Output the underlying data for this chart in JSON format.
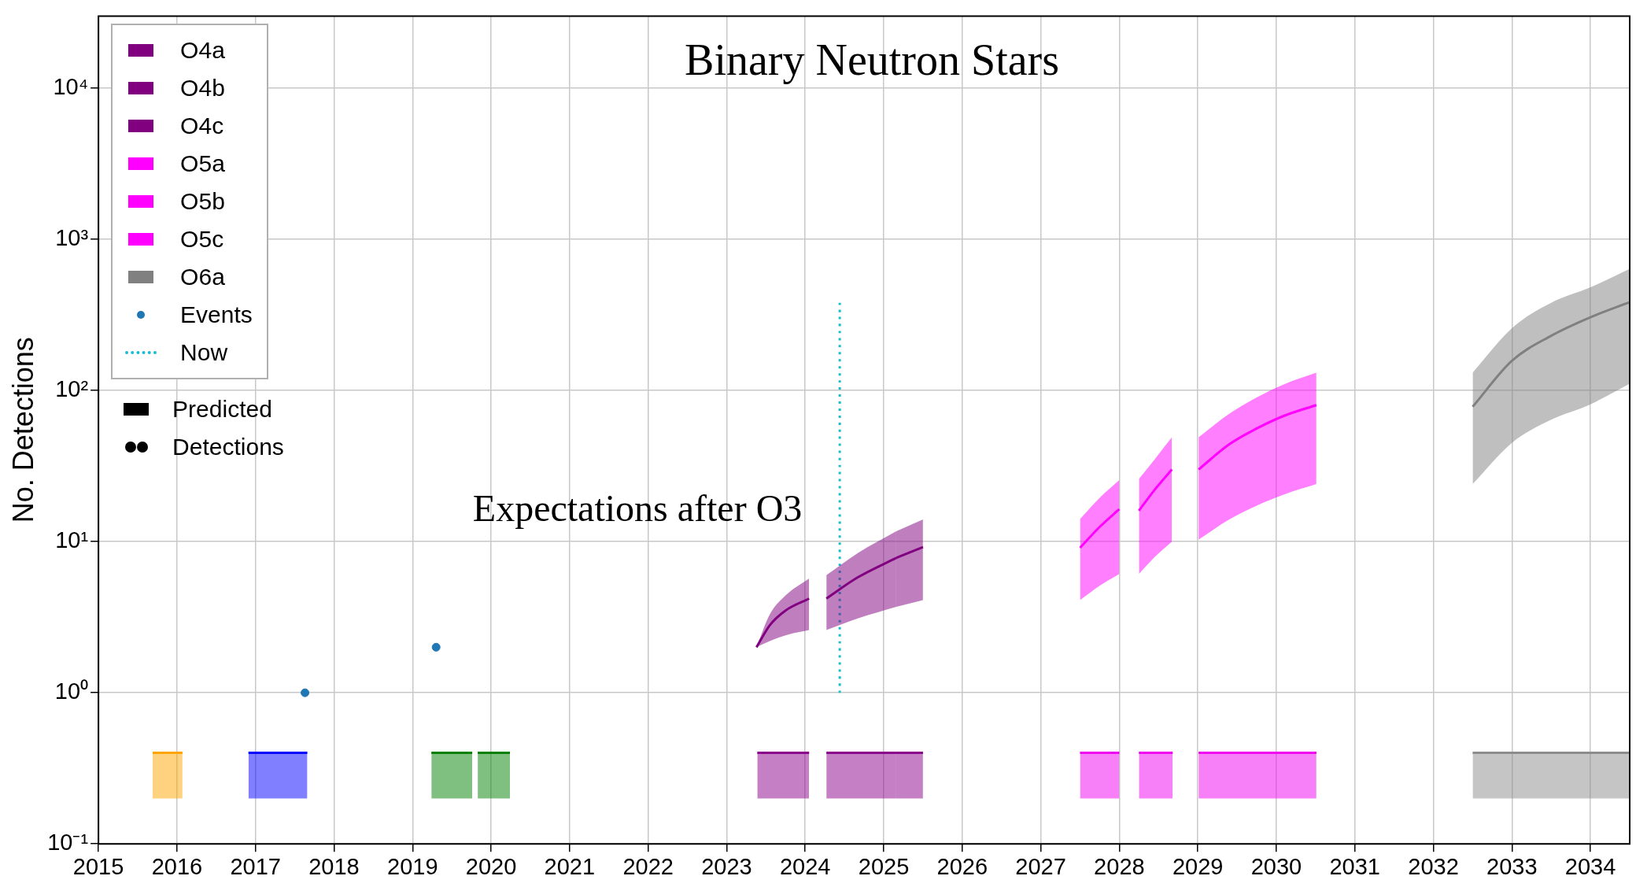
{
  "chart_data": {
    "type": "line",
    "title": "Binary Neutron Stars",
    "ylabel": "No. Detections",
    "log": "y",
    "grid": true,
    "legend": "top left",
    "xlim": [
      2015,
      2034.5
    ],
    "xticks": [
      2015,
      2016,
      2017,
      2018,
      2019,
      2020,
      2021,
      2022,
      2023,
      2024,
      2025,
      2026,
      2027,
      2028,
      2029,
      2030,
      2031,
      2032,
      2033,
      2034
    ],
    "ylim": [
      0.1,
      30000
    ],
    "yticks": [
      {
        "value": 0.1,
        "label": "10⁻¹"
      },
      {
        "value": 1,
        "label": "10⁰"
      },
      {
        "value": 10,
        "label": "10¹"
      },
      {
        "value": 100,
        "label": "10²"
      },
      {
        "value": 1000,
        "label": "10³"
      },
      {
        "value": 10000,
        "label": "10⁴"
      }
    ],
    "annotations": [
      "Expectations after O3",
      "Predicted",
      "Detections"
    ],
    "series": [
      {
        "name": "O4a",
        "color": "#800080",
        "x": [
          2023.38,
          2023.55,
          2023.75,
          2024.05
        ],
        "values": [
          2,
          2.8,
          3.5,
          4.2
        ],
        "lower": [
          2,
          2.2,
          2.4,
          2.6
        ],
        "upper": [
          2,
          3.3,
          4.4,
          5.7
        ]
      },
      {
        "name": "O4b",
        "color": "#800080",
        "x": [
          2024.27,
          2024.67,
          2025.16
        ],
        "values": [
          4.2,
          5.8,
          7.8
        ],
        "lower": [
          2.6,
          3.1,
          3.7
        ],
        "upper": [
          6,
          8.4,
          11.7
        ]
      },
      {
        "name": "O4c",
        "color": "#800080",
        "x": [
          2025.16,
          2025.5
        ],
        "values": [
          7.8,
          9.2
        ],
        "lower": [
          3.7,
          4.1
        ],
        "upper": [
          11.7,
          14
        ]
      },
      {
        "name": "O5a",
        "color": "#ff00ff",
        "x": [
          2027.5,
          2027.75,
          2028.0
        ],
        "values": [
          9.1,
          12.5,
          16.4
        ],
        "lower": [
          4.1,
          5.1,
          6.1
        ],
        "upper": [
          14.1,
          19.5,
          25.5
        ]
      },
      {
        "name": "O5b",
        "color": "#ff00ff",
        "x": [
          2028.25,
          2028.45,
          2028.67
        ],
        "values": [
          16,
          22,
          30
        ],
        "lower": [
          6.1,
          7.9,
          10
        ],
        "upper": [
          26,
          35,
          49
        ]
      },
      {
        "name": "O5c",
        "color": "#ff00ff",
        "x": [
          2029.01,
          2029.4,
          2029.75,
          2030.1,
          2030.51
        ],
        "values": [
          30,
          44,
          56,
          68,
          80
        ],
        "lower": [
          10.3,
          14,
          17.3,
          20.5,
          24
        ],
        "upper": [
          49,
          70,
          90,
          110,
          131
        ]
      },
      {
        "name": "O6a",
        "color": "#808080",
        "x": [
          2032.5,
          2033,
          2033.5,
          2034,
          2034.5
        ],
        "values": [
          78,
          157,
          230,
          305,
          384
        ],
        "lower": [
          24,
          45,
          64,
          81,
          111
        ],
        "upper": [
          131,
          258,
          380,
          481,
          638
        ]
      },
      {
        "name": "Events",
        "type": "scatter",
        "color": "#1f77b4",
        "marker": "circle",
        "x": [
          2017.63,
          2019.3
        ],
        "values": [
          1,
          2
        ]
      },
      {
        "name": "Now",
        "color": "#17becf",
        "line_style": "dotted",
        "x": [
          2024.44,
          2024.44
        ],
        "values": [
          1,
          380
        ]
      },
      {
        "color": "#ffa500",
        "x": [
          2015.69,
          2016.07
        ],
        "values": [
          0.4,
          0.4
        ],
        "lower": [
          0.2,
          0.2
        ],
        "upper": [
          0.4,
          0.4
        ]
      },
      {
        "color": "#0000ff",
        "x": [
          2016.91,
          2017.66
        ],
        "values": [
          0.4,
          0.4
        ],
        "lower": [
          0.2,
          0.2
        ],
        "upper": [
          0.4,
          0.4
        ]
      },
      {
        "color": "#008000",
        "x": [
          2019.24,
          2019.76
        ],
        "values": [
          0.4,
          0.4
        ],
        "lower": [
          0.2,
          0.2
        ],
        "upper": [
          0.4,
          0.4
        ]
      },
      {
        "color": "#008000",
        "x": [
          2019.83,
          2020.24
        ],
        "values": [
          0.4,
          0.4
        ],
        "lower": [
          0.2,
          0.2
        ],
        "upper": [
          0.4,
          0.4
        ]
      },
      {
        "color": "#8b008b",
        "x": [
          2023.39,
          2024.05
        ],
        "values": [
          0.4,
          0.4
        ],
        "lower": [
          0.2,
          0.2
        ],
        "upper": [
          0.4,
          0.4
        ]
      },
      {
        "color": "#8b008b",
        "x": [
          2024.27,
          2025.16
        ],
        "values": [
          0.4,
          0.4
        ],
        "lower": [
          0.2,
          0.2
        ],
        "upper": [
          0.4,
          0.4
        ]
      },
      {
        "color": "#8b008b",
        "x": [
          2025.16,
          2025.5
        ],
        "values": [
          0.4,
          0.4
        ],
        "lower": [
          0.2,
          0.2
        ],
        "upper": [
          0.4,
          0.4
        ]
      },
      {
        "color": "#f000f0",
        "x": [
          2027.5,
          2028.0
        ],
        "values": [
          0.4,
          0.4
        ],
        "lower": [
          0.2,
          0.2
        ],
        "upper": [
          0.4,
          0.4
        ]
      },
      {
        "color": "#f000f0",
        "x": [
          2028.25,
          2028.68
        ],
        "values": [
          0.4,
          0.4
        ],
        "lower": [
          0.2,
          0.2
        ],
        "upper": [
          0.4,
          0.4
        ]
      },
      {
        "color": "#f000f0",
        "x": [
          2029.01,
          2030.51
        ],
        "values": [
          0.4,
          0.4
        ],
        "lower": [
          0.2,
          0.2
        ],
        "upper": [
          0.4,
          0.4
        ]
      },
      {
        "color": "#8c8c8c",
        "x": [
          2032.5,
          2034.5
        ],
        "values": [
          0.4,
          0.4
        ],
        "lower": [
          0.2,
          0.2
        ],
        "upper": [
          0.4,
          0.4
        ]
      }
    ]
  }
}
